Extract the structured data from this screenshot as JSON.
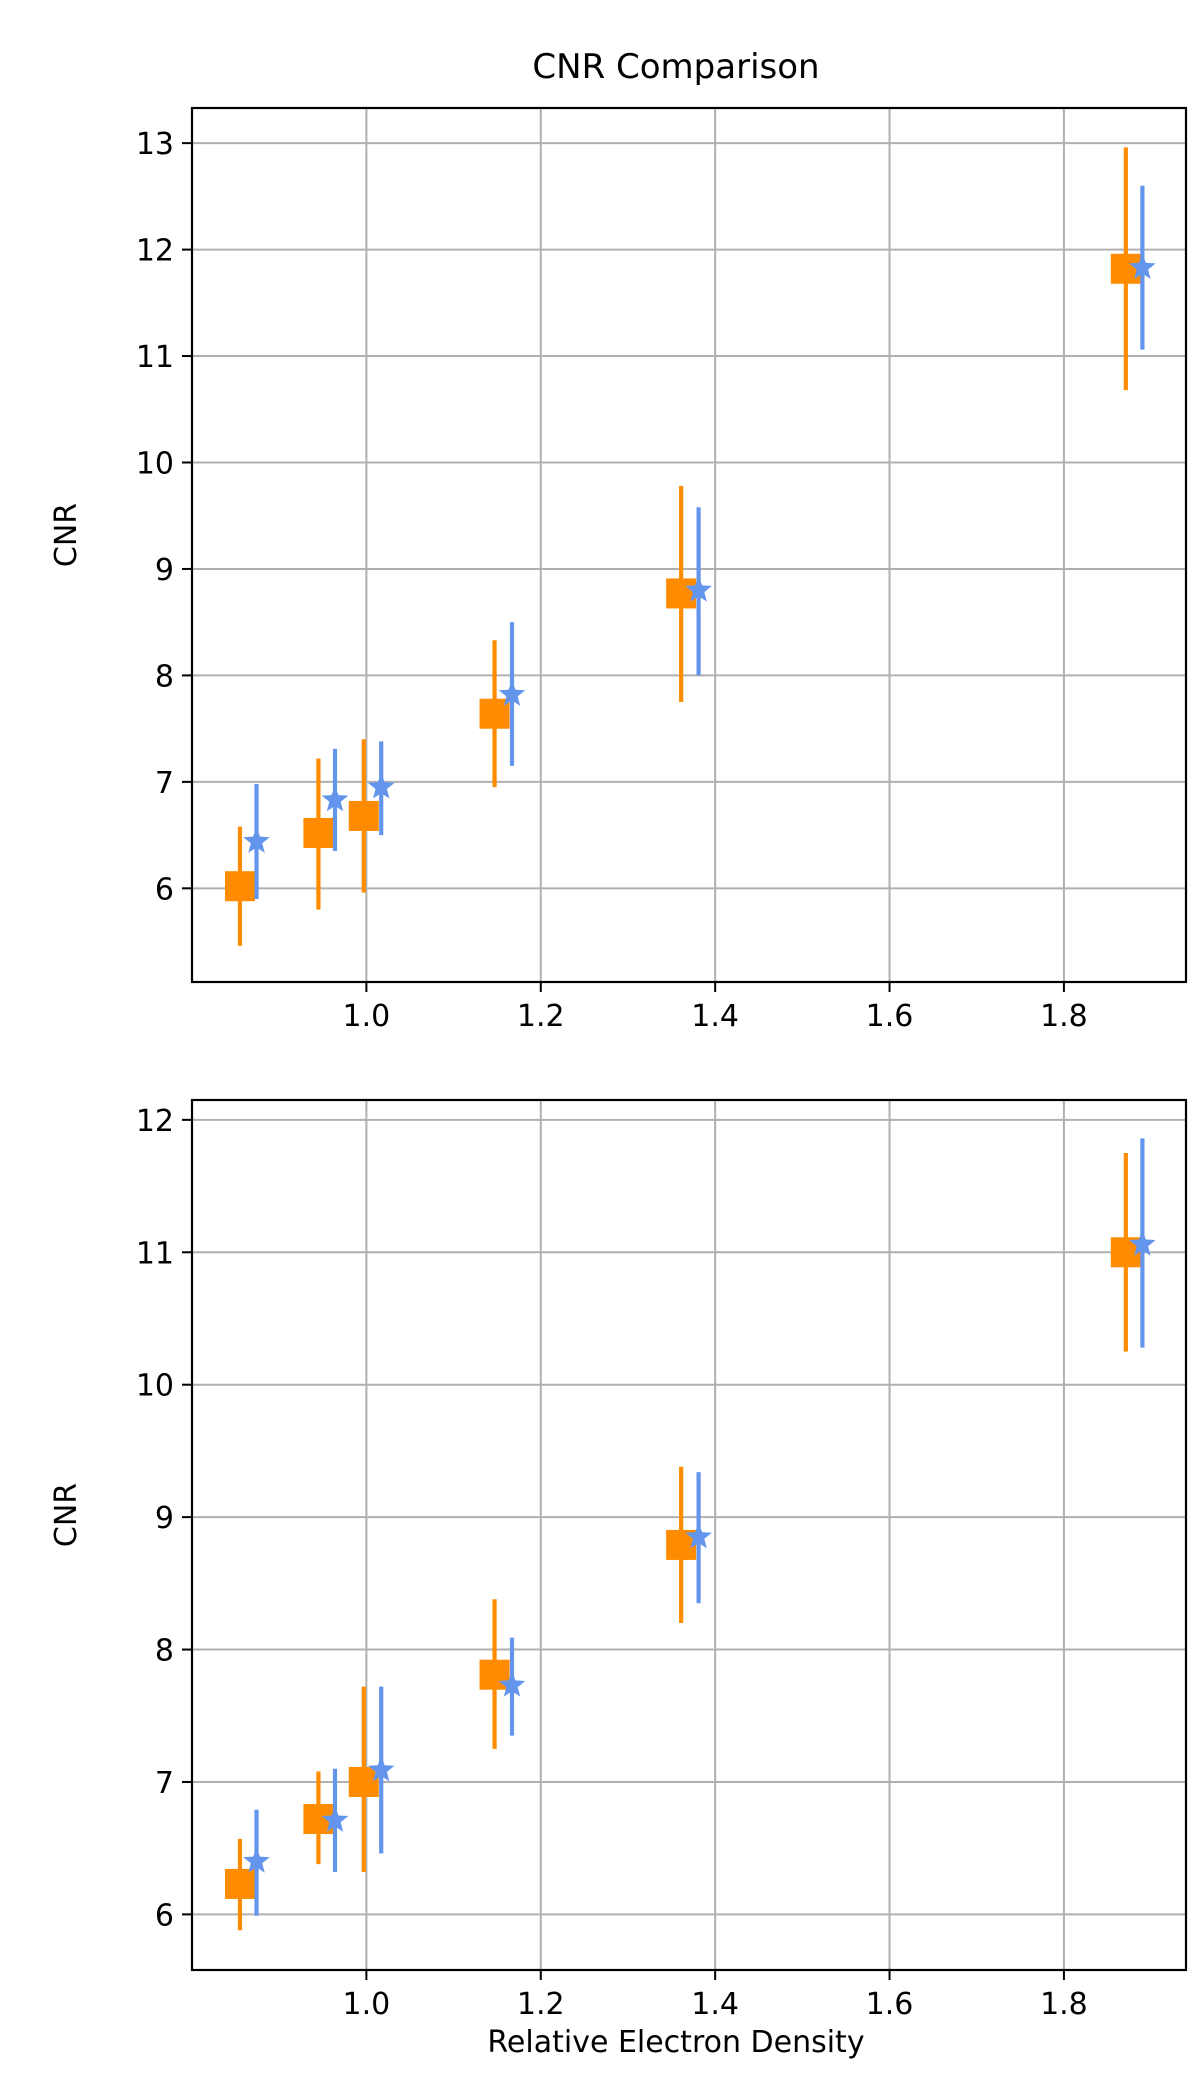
{
  "chart_data": [
    {
      "type": "scatter",
      "title": "CNR Comparison",
      "xlabel": "",
      "ylabel": "CNR",
      "xlim": [
        0.8,
        1.94
      ],
      "ylim": [
        5.12,
        13.33
      ],
      "xticks": [
        1.0,
        1.2,
        1.4,
        1.6,
        1.8
      ],
      "xtick_labels": [
        "1.0",
        "1.2",
        "1.4",
        "1.6",
        "1.8"
      ],
      "yticks": [
        6,
        7,
        8,
        9,
        10,
        11,
        12,
        13
      ],
      "ytick_labels": [
        "6",
        "7",
        "8",
        "9",
        "10",
        "11",
        "12",
        "13"
      ],
      "grid": true,
      "legend": "none",
      "series": [
        {
          "marker": "square",
          "color": "#ff8c00",
          "x": [
            0.855,
            0.945,
            0.997,
            1.147,
            1.361,
            1.871
          ],
          "y": [
            6.02,
            6.52,
            6.68,
            7.64,
            8.77,
            11.82
          ],
          "err_low": [
            5.46,
            5.8,
            5.96,
            6.95,
            7.75,
            10.68
          ],
          "err_high": [
            6.58,
            7.22,
            7.4,
            8.33,
            9.78,
            12.96
          ]
        },
        {
          "marker": "star",
          "color": "#6495ed",
          "x": [
            0.874,
            0.964,
            1.017,
            1.167,
            1.381,
            1.89
          ],
          "y": [
            6.44,
            6.83,
            6.95,
            7.82,
            8.8,
            11.83
          ],
          "err_low": [
            5.9,
            6.35,
            6.5,
            7.15,
            8.0,
            11.06
          ],
          "err_high": [
            6.98,
            7.31,
            7.38,
            8.5,
            9.58,
            12.6
          ]
        }
      ]
    },
    {
      "type": "scatter",
      "title": "",
      "xlabel": "Relative Electron Density",
      "ylabel": "CNR",
      "xlim": [
        0.8,
        1.94
      ],
      "ylim": [
        5.58,
        12.15
      ],
      "xticks": [
        1.0,
        1.2,
        1.4,
        1.6,
        1.8
      ],
      "xtick_labels": [
        "1.0",
        "1.2",
        "1.4",
        "1.6",
        "1.8"
      ],
      "yticks": [
        6,
        7,
        8,
        9,
        10,
        11,
        12
      ],
      "ytick_labels": [
        "6",
        "7",
        "8",
        "9",
        "10",
        "11",
        "12"
      ],
      "grid": true,
      "legend": "none",
      "series": [
        {
          "marker": "square",
          "color": "#ff8c00",
          "x": [
            0.855,
            0.945,
            0.997,
            1.147,
            1.361,
            1.871
          ],
          "y": [
            6.23,
            6.72,
            7.0,
            7.81,
            8.79,
            11.0
          ],
          "err_low": [
            5.88,
            6.38,
            6.32,
            7.25,
            8.2,
            10.25
          ],
          "err_high": [
            6.57,
            7.08,
            7.72,
            8.38,
            9.38,
            11.75
          ]
        },
        {
          "marker": "star",
          "color": "#6495ed",
          "x": [
            0.874,
            0.964,
            1.017,
            1.167,
            1.381,
            1.89
          ],
          "y": [
            6.4,
            6.71,
            7.09,
            7.73,
            8.85,
            11.06
          ],
          "err_low": [
            5.99,
            6.32,
            6.46,
            7.35,
            8.35,
            10.28
          ],
          "err_high": [
            6.79,
            7.1,
            7.72,
            8.09,
            9.34,
            11.86
          ]
        }
      ]
    }
  ]
}
